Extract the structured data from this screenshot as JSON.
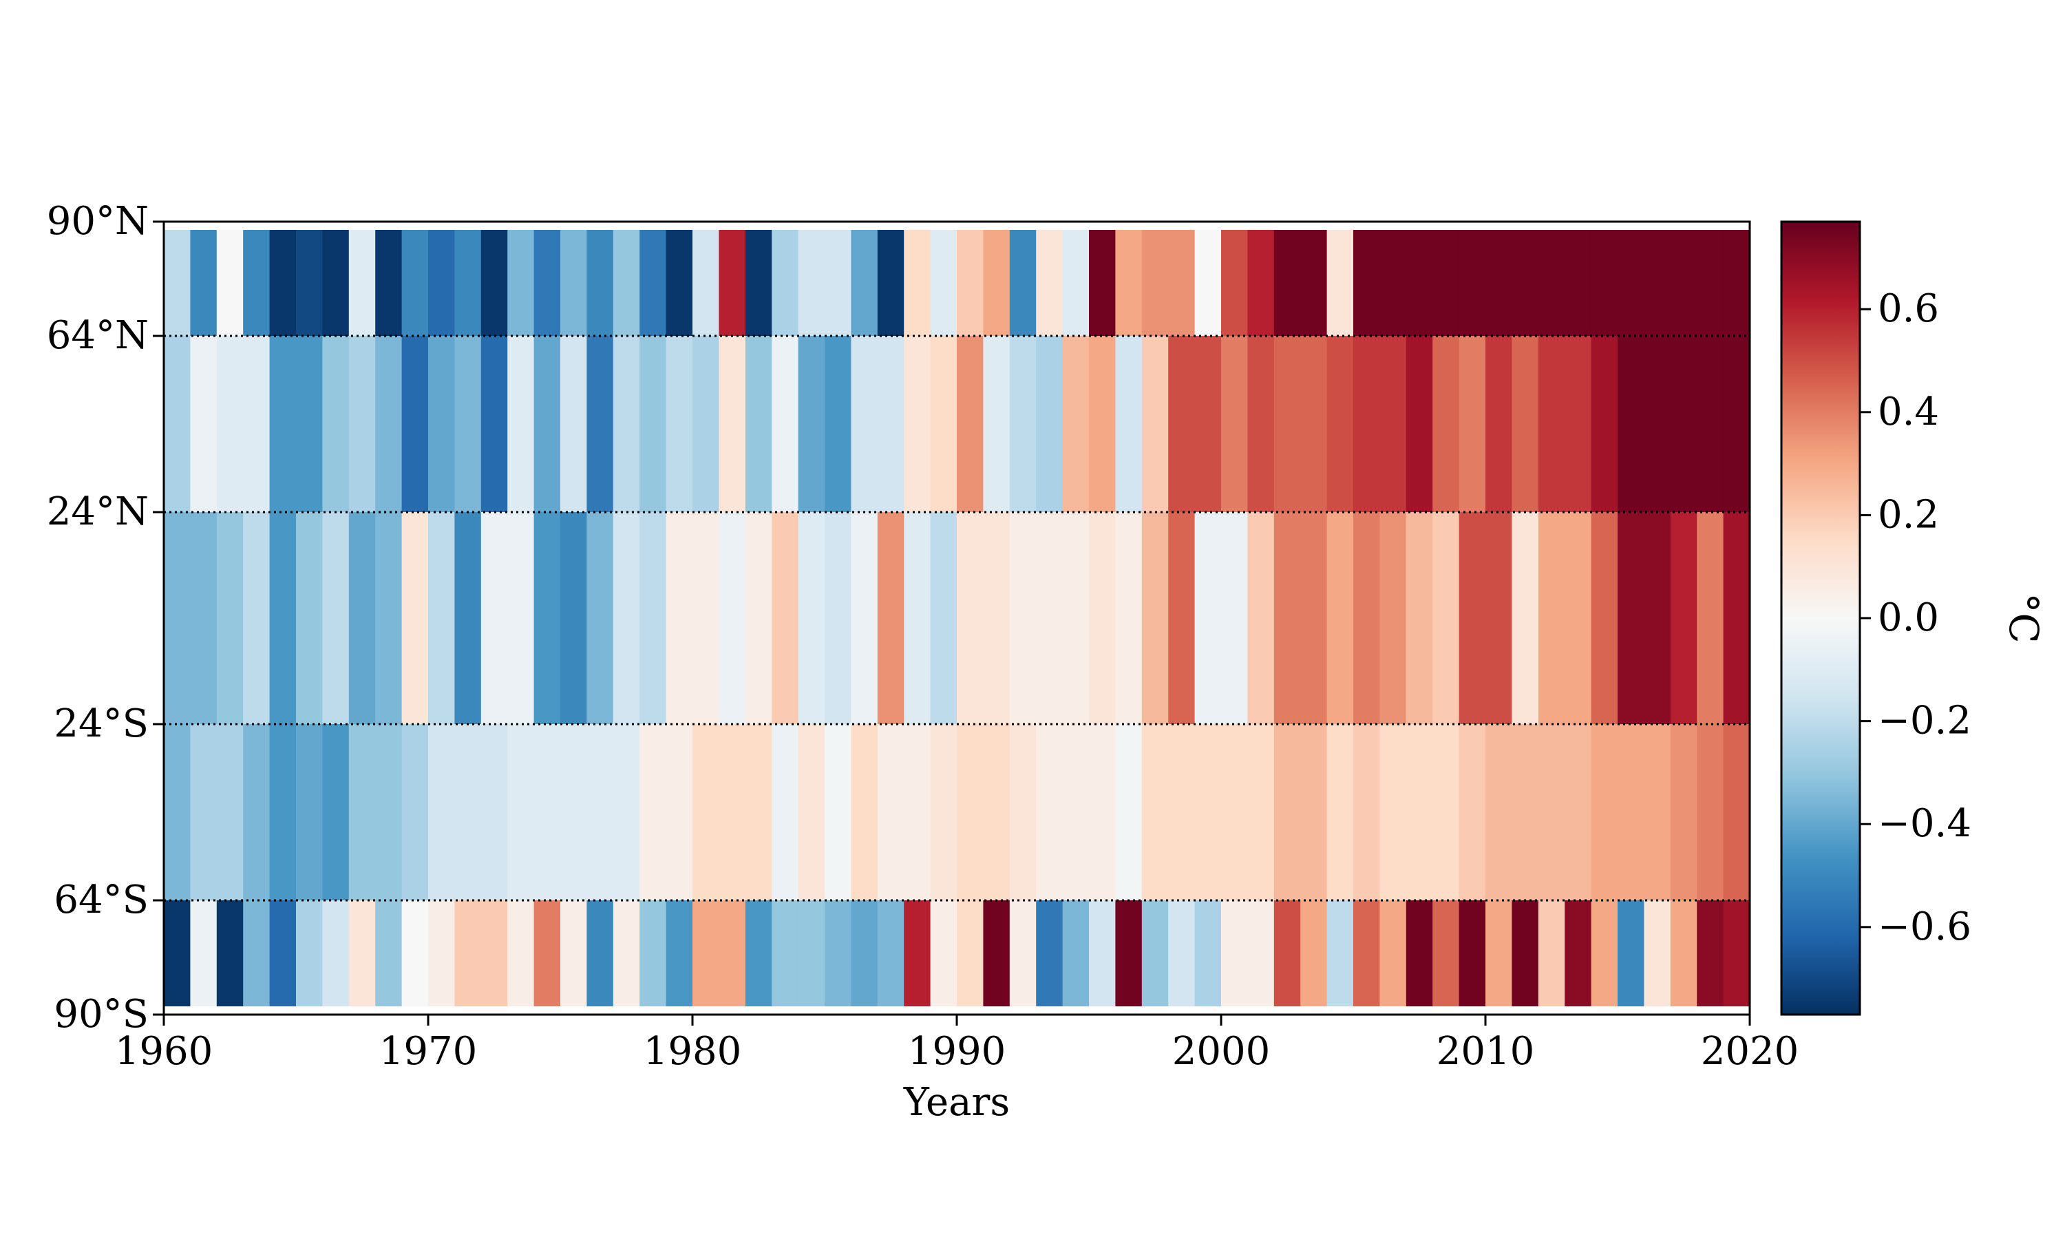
{
  "chart_data": {
    "type": "heatmap",
    "title": "",
    "xlabel": "Years",
    "ylabel": "",
    "xlim": [
      1960,
      2020
    ],
    "x_ticks": [
      "1960",
      "1970",
      "1980",
      "1990",
      "2000",
      "2010",
      "2020"
    ],
    "y_ticks": [
      "90°N",
      "64°N",
      "24°N",
      "24°S",
      "64°S",
      "90°S"
    ],
    "years_start": 1960,
    "bands": [
      {
        "name": "90°N–64°N",
        "values": [
          -0.2,
          -0.5,
          0.0,
          -0.5,
          -0.75,
          -0.7,
          -0.75,
          -0.1,
          -0.75,
          -0.5,
          -0.6,
          -0.5,
          -0.75,
          -0.35,
          -0.55,
          -0.35,
          -0.5,
          -0.3,
          -0.55,
          -0.75,
          -0.15,
          0.6,
          -0.75,
          -0.25,
          -0.15,
          -0.15,
          -0.4,
          -0.75,
          0.15,
          -0.1,
          0.2,
          0.3,
          -0.5,
          0.1,
          -0.1,
          0.75,
          0.3,
          0.35,
          0.35,
          0.0,
          0.5,
          0.6,
          0.75,
          0.75,
          0.1,
          0.75,
          0.75,
          0.75,
          0.75,
          0.75,
          0.75,
          0.75,
          0.75,
          0.75,
          0.75,
          0.75,
          0.75,
          0.75,
          0.75,
          0.75
        ]
      },
      {
        "name": "64°N–24°N",
        "values": [
          -0.25,
          -0.05,
          -0.1,
          -0.1,
          -0.45,
          -0.45,
          -0.3,
          -0.25,
          -0.35,
          -0.6,
          -0.4,
          -0.35,
          -0.6,
          -0.1,
          -0.4,
          -0.15,
          -0.55,
          -0.2,
          -0.3,
          -0.2,
          -0.25,
          0.1,
          -0.3,
          -0.05,
          -0.4,
          -0.45,
          -0.15,
          -0.15,
          0.1,
          0.15,
          0.35,
          -0.1,
          -0.2,
          -0.25,
          0.25,
          0.3,
          -0.15,
          0.2,
          0.5,
          0.5,
          0.4,
          0.5,
          0.45,
          0.45,
          0.5,
          0.55,
          0.55,
          0.65,
          0.45,
          0.4,
          0.55,
          0.45,
          0.55,
          0.55,
          0.65,
          0.75,
          0.75,
          0.75,
          0.75,
          0.75
        ]
      },
      {
        "name": "24°N–24°S",
        "values": [
          -0.35,
          -0.35,
          -0.3,
          -0.2,
          -0.45,
          -0.3,
          -0.2,
          -0.4,
          -0.35,
          0.1,
          -0.2,
          -0.5,
          -0.05,
          -0.05,
          -0.45,
          -0.5,
          -0.35,
          -0.15,
          -0.2,
          0.05,
          0.05,
          -0.05,
          0.05,
          0.2,
          -0.1,
          -0.15,
          -0.05,
          0.35,
          -0.1,
          -0.2,
          0.1,
          0.1,
          0.05,
          0.05,
          0.05,
          0.1,
          0.05,
          0.25,
          0.45,
          -0.05,
          -0.05,
          0.2,
          0.4,
          0.4,
          0.3,
          0.4,
          0.35,
          0.25,
          0.2,
          0.5,
          0.5,
          0.1,
          0.3,
          0.3,
          0.45,
          0.7,
          0.7,
          0.6,
          0.4,
          0.65
        ]
      },
      {
        "name": "24°S–64°S",
        "values": [
          -0.35,
          -0.25,
          -0.25,
          -0.35,
          -0.45,
          -0.4,
          -0.45,
          -0.3,
          -0.3,
          -0.25,
          -0.15,
          -0.15,
          -0.15,
          -0.1,
          -0.1,
          -0.1,
          -0.1,
          -0.1,
          0.05,
          0.05,
          0.15,
          0.15,
          0.15,
          -0.05,
          0.1,
          -0.02,
          0.15,
          0.05,
          0.05,
          0.1,
          0.15,
          0.15,
          0.1,
          0.05,
          0.05,
          0.05,
          -0.02,
          0.15,
          0.15,
          0.15,
          0.15,
          0.15,
          0.25,
          0.25,
          0.15,
          0.2,
          0.15,
          0.15,
          0.15,
          0.2,
          0.25,
          0.25,
          0.25,
          0.25,
          0.3,
          0.3,
          0.3,
          0.35,
          0.4,
          0.45
        ]
      },
      {
        "name": "64°S–90°S",
        "values": [
          -0.75,
          -0.05,
          -0.75,
          -0.35,
          -0.6,
          -0.25,
          -0.15,
          0.1,
          -0.3,
          0.0,
          0.05,
          0.2,
          0.2,
          0.05,
          0.4,
          0.05,
          -0.5,
          0.05,
          -0.3,
          -0.45,
          0.3,
          0.3,
          -0.45,
          -0.3,
          -0.3,
          -0.35,
          -0.4,
          -0.35,
          0.6,
          0.05,
          0.15,
          0.75,
          0.05,
          -0.55,
          -0.35,
          -0.15,
          0.75,
          -0.3,
          -0.15,
          -0.25,
          0.05,
          0.05,
          0.5,
          0.3,
          -0.2,
          0.45,
          0.3,
          0.75,
          0.45,
          0.75,
          0.3,
          0.75,
          0.2,
          0.7,
          0.3,
          -0.5,
          0.1,
          0.3,
          0.7,
          0.65
        ]
      }
    ],
    "colorbar": {
      "label": "°C",
      "range": [
        -0.77,
        0.77
      ],
      "ticks": [
        "−0.6",
        "−0.4",
        "−0.2",
        "0.0",
        "0.2",
        "0.4",
        "0.6"
      ],
      "colormap": "RdBu_r"
    }
  }
}
